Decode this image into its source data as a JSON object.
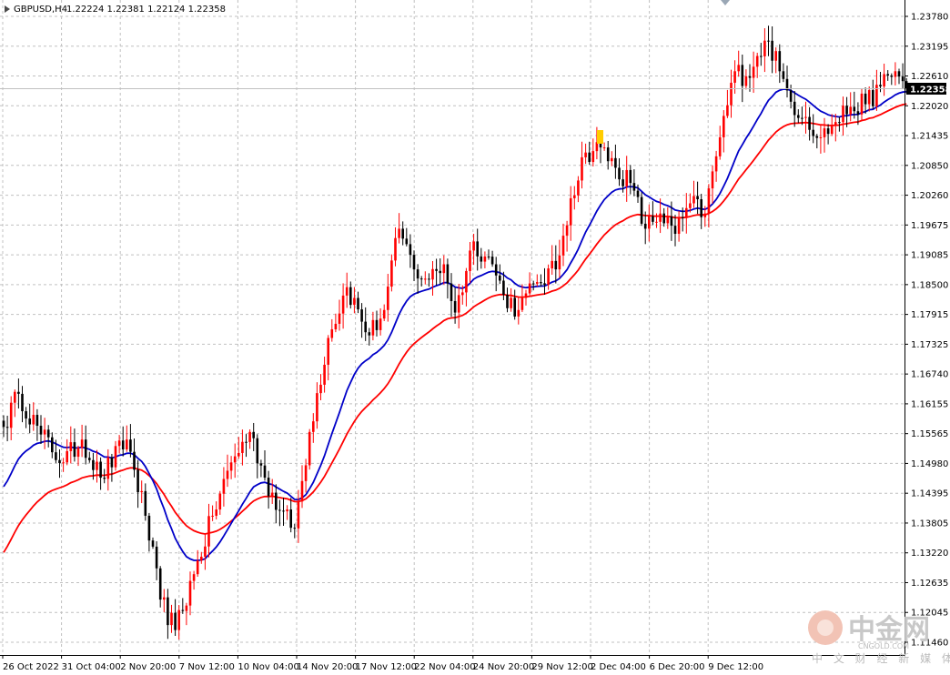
{
  "header": {
    "symbol": "GBPUSD,H4",
    "ohlc": "1.22224 1.22381 1.22124 1.22358"
  },
  "current_price": "1.22358",
  "watermark": {
    "main": "中金网",
    "url": "CNGOLD.COM",
    "sub": "中 文 财 经 新 媒 体"
  },
  "colors": {
    "bull": "#ff0000",
    "bear": "#000000",
    "ma_fast": "#0000c8",
    "ma_slow": "#ff0000",
    "grid": "#c0c0c0",
    "highlight": "#ffcc00",
    "current_bg": "#000000"
  },
  "chart_data": {
    "type": "candlestick",
    "title": "GBPUSD,H4",
    "ylim": [
      1.1146,
      1.2378
    ],
    "y_ticks": [
      "1.23780",
      "1.23195",
      "1.22610",
      "1.22020",
      "1.21435",
      "1.20850",
      "1.20260",
      "1.19675",
      "1.19085",
      "1.18500",
      "1.17915",
      "1.17325",
      "1.16740",
      "1.16155",
      "1.15565",
      "1.14980",
      "1.14395",
      "1.13805",
      "1.13220",
      "1.12635",
      "1.12045",
      "1.11460"
    ],
    "x_ticks": [
      "26 Oct 2022",
      "31 Oct 04:00",
      "2 Nov 20:00",
      "7 Nov 12:00",
      "10 Nov 04:00",
      "14 Nov 20:00",
      "17 Nov 12:00",
      "22 Nov 04:00",
      "24 Nov 20:00",
      "29 Nov 12:00",
      "2 Dec 04:00",
      "6 Dec 20:00",
      "9 Dec 12:00"
    ],
    "grid": true,
    "key_closes": [
      [
        0,
        1.157
      ],
      [
        4,
        1.1635
      ],
      [
        10,
        1.1555
      ],
      [
        16,
        1.15
      ],
      [
        21,
        1.1545
      ],
      [
        26,
        1.147
      ],
      [
        33,
        1.1545
      ],
      [
        38,
        1.1395
      ],
      [
        42,
        1.123
      ],
      [
        46,
        1.117
      ],
      [
        51,
        1.128
      ],
      [
        56,
        1.1395
      ],
      [
        61,
        1.15
      ],
      [
        66,
        1.156
      ],
      [
        70,
        1.147
      ],
      [
        74,
        1.1405
      ],
      [
        78,
        1.137
      ],
      [
        82,
        1.156
      ],
      [
        87,
        1.1745
      ],
      [
        92,
        1.1845
      ],
      [
        98,
        1.175
      ],
      [
        102,
        1.18
      ],
      [
        106,
        1.196
      ],
      [
        110,
        1.188
      ],
      [
        114,
        1.186
      ],
      [
        118,
        1.189
      ],
      [
        121,
        1.1795
      ],
      [
        126,
        1.1935
      ],
      [
        131,
        1.189
      ],
      [
        134,
        1.183
      ],
      [
        138,
        1.18
      ],
      [
        143,
        1.1855
      ],
      [
        148,
        1.188
      ],
      [
        152,
        1.202
      ],
      [
        156,
        1.211
      ],
      [
        160,
        1.212
      ],
      [
        164,
        1.208
      ],
      [
        168,
        1.205
      ],
      [
        172,
        1.196
      ],
      [
        176,
        1.199
      ],
      [
        180,
        1.195
      ],
      [
        184,
        1.201
      ],
      [
        188,
        1.199
      ],
      [
        192,
        1.214
      ],
      [
        196,
        1.227
      ],
      [
        199,
        1.226
      ],
      [
        202,
        1.23
      ],
      [
        205,
        1.233
      ],
      [
        208,
        1.227
      ],
      [
        211,
        1.221
      ],
      [
        215,
        1.218
      ],
      [
        219,
        1.214
      ],
      [
        223,
        1.217
      ],
      [
        227,
        1.22
      ],
      [
        231,
        1.2205
      ],
      [
        235,
        1.224
      ],
      [
        239,
        1.227
      ],
      [
        242,
        1.2236
      ]
    ]
  }
}
